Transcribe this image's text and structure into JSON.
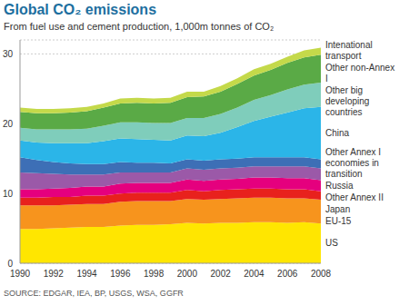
{
  "chart_data": {
    "type": "area",
    "title": "Global CO₂ emissions",
    "subtitle": "From fuel use and cement production, 1,000m tonnes of CO₂",
    "source": "SOURCE: EDGAR, IEA, BP, USGS, WSA, GGFR",
    "stacked": true,
    "grid": true,
    "x": [
      1990,
      1991,
      1992,
      1993,
      1994,
      1995,
      1996,
      1997,
      1998,
      1999,
      2000,
      2001,
      2002,
      2003,
      2004,
      2005,
      2006,
      2007,
      2008
    ],
    "xlim": [
      1990,
      2008
    ],
    "xticks": [
      1990,
      1992,
      1994,
      1996,
      1998,
      2000,
      2002,
      2004,
      2006,
      2008
    ],
    "ylim": [
      0,
      32
    ],
    "yticks": [
      0,
      10,
      20,
      30
    ],
    "series": [
      {
        "name": "US",
        "color": "#ffe600",
        "values": [
          4.9,
          4.9,
          5.0,
          5.1,
          5.2,
          5.2,
          5.4,
          5.5,
          5.5,
          5.6,
          5.8,
          5.7,
          5.8,
          5.8,
          5.9,
          5.9,
          5.8,
          5.9,
          5.7
        ]
      },
      {
        "name": "EU-15",
        "color": "#f7941d",
        "values": [
          3.4,
          3.4,
          3.3,
          3.3,
          3.3,
          3.3,
          3.4,
          3.4,
          3.4,
          3.3,
          3.4,
          3.4,
          3.4,
          3.5,
          3.5,
          3.5,
          3.5,
          3.4,
          3.4
        ]
      },
      {
        "name": "Japan",
        "color": "#e8211d",
        "values": [
          1.1,
          1.1,
          1.2,
          1.1,
          1.2,
          1.2,
          1.2,
          1.2,
          1.2,
          1.2,
          1.3,
          1.2,
          1.3,
          1.3,
          1.3,
          1.3,
          1.3,
          1.3,
          1.2
        ]
      },
      {
        "name": "Other Annex II",
        "color": "#e5007e",
        "values": [
          1.2,
          1.2,
          1.2,
          1.3,
          1.3,
          1.3,
          1.4,
          1.4,
          1.4,
          1.4,
          1.5,
          1.5,
          1.5,
          1.5,
          1.6,
          1.6,
          1.6,
          1.6,
          1.6
        ]
      },
      {
        "name": "Russia",
        "color": "#9b59a8",
        "values": [
          2.4,
          2.3,
          2.1,
          1.9,
          1.7,
          1.7,
          1.6,
          1.5,
          1.5,
          1.5,
          1.6,
          1.6,
          1.6,
          1.6,
          1.6,
          1.6,
          1.7,
          1.7,
          1.7
        ]
      },
      {
        "name": "Other Annex I economies in transition",
        "color": "#3d6fb6",
        "values": [
          2.2,
          1.9,
          1.7,
          1.6,
          1.5,
          1.5,
          1.5,
          1.4,
          1.4,
          1.3,
          1.3,
          1.3,
          1.3,
          1.3,
          1.3,
          1.3,
          1.3,
          1.3,
          1.3
        ]
      },
      {
        "name": "China",
        "color": "#2bb5e8",
        "values": [
          2.4,
          2.5,
          2.7,
          2.9,
          3.0,
          3.3,
          3.4,
          3.4,
          3.3,
          3.3,
          3.4,
          3.5,
          3.8,
          4.5,
          5.2,
          5.8,
          6.4,
          7.0,
          7.5
        ]
      },
      {
        "name": "Other big developing countries",
        "color": "#7fcdbb",
        "values": [
          1.8,
          1.9,
          2.0,
          2.0,
          2.1,
          2.2,
          2.3,
          2.4,
          2.4,
          2.5,
          2.5,
          2.6,
          2.7,
          2.8,
          3.0,
          3.1,
          3.3,
          3.4,
          3.5
        ]
      },
      {
        "name": "Other non-Annex I",
        "color": "#5aaa46",
        "values": [
          2.3,
          2.3,
          2.3,
          2.4,
          2.5,
          2.6,
          2.7,
          2.8,
          2.8,
          2.9,
          3.0,
          3.1,
          3.2,
          3.4,
          3.5,
          3.6,
          3.8,
          3.9,
          4.0
        ]
      },
      {
        "name": "Intenational transport",
        "color": "#c4d94a",
        "values": [
          0.6,
          0.6,
          0.6,
          0.6,
          0.6,
          0.6,
          0.7,
          0.7,
          0.7,
          0.7,
          0.8,
          0.7,
          0.8,
          0.8,
          0.9,
          0.9,
          0.9,
          1.0,
          1.0
        ]
      }
    ]
  }
}
